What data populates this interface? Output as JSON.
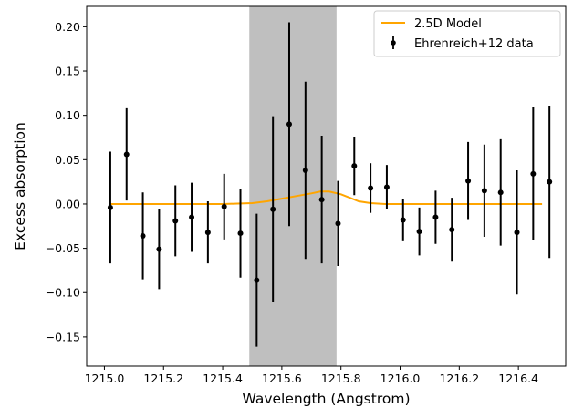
{
  "chart_data": {
    "type": "scatter",
    "title": "",
    "xlabel": "Wavelength (Angstrom)",
    "ylabel": "Excess absorption",
    "xlim": [
      1214.94,
      1216.56
    ],
    "ylim": [
      -0.183,
      0.223
    ],
    "x_ticks": [
      1215.0,
      1215.2,
      1215.4,
      1215.6,
      1215.8,
      1216.0,
      1216.2,
      1216.4
    ],
    "x_tick_labels": [
      "1215.0",
      "1215.2",
      "1215.4",
      "1215.6",
      "1215.8",
      "1216.0",
      "1216.2",
      "1216.4"
    ],
    "y_ticks": [
      -0.15,
      -0.1,
      -0.05,
      0.0,
      0.05,
      0.1,
      0.15,
      0.2
    ],
    "y_tick_labels": [
      "−0.15",
      "−0.10",
      "−0.05",
      "0.00",
      "0.05",
      "0.10",
      "0.15",
      "0.20"
    ],
    "grid": false,
    "legend_position": "top-right",
    "shaded_region": {
      "x_range": [
        1215.49,
        1215.785
      ],
      "color": "#bfbfbf"
    },
    "series": [
      {
        "name": "2.5D Model",
        "kind": "line",
        "color": "#ffa500",
        "x": [
          1215.02,
          1215.4,
          1215.45,
          1215.5,
          1215.55,
          1215.6,
          1215.65,
          1215.7,
          1215.73,
          1215.76,
          1215.8,
          1215.83,
          1215.86,
          1215.9,
          1215.95,
          1216.0,
          1216.48
        ],
        "y": [
          0.0,
          0.0,
          0.0005,
          0.001,
          0.003,
          0.006,
          0.009,
          0.012,
          0.014,
          0.014,
          0.011,
          0.007,
          0.003,
          0.001,
          0.0,
          0.0,
          0.0
        ]
      },
      {
        "name": "Ehrenreich+12 data",
        "kind": "errorbar",
        "color": "#000000",
        "x": [
          1215.02,
          1215.075,
          1215.13,
          1215.185,
          1215.24,
          1215.295,
          1215.35,
          1215.405,
          1215.46,
          1215.515,
          1215.57,
          1215.625,
          1215.68,
          1215.735,
          1215.79,
          1215.845,
          1215.9,
          1215.955,
          1216.01,
          1216.065,
          1216.12,
          1216.175,
          1216.23,
          1216.285,
          1216.34,
          1216.395,
          1216.45,
          1216.505
        ],
        "y": [
          -0.004,
          0.056,
          -0.036,
          -0.051,
          -0.019,
          -0.015,
          -0.032,
          -0.003,
          -0.033,
          -0.086,
          -0.006,
          0.09,
          0.038,
          0.005,
          -0.022,
          0.043,
          0.018,
          0.019,
          -0.018,
          -0.031,
          -0.015,
          -0.029,
          0.026,
          0.015,
          0.013,
          -0.032,
          0.034,
          0.025
        ],
        "err_low": [
          0.063,
          0.052,
          0.049,
          0.045,
          0.04,
          0.039,
          0.035,
          0.037,
          0.05,
          0.075,
          0.105,
          0.115,
          0.1,
          0.072,
          0.048,
          0.033,
          0.028,
          0.025,
          0.024,
          0.027,
          0.03,
          0.036,
          0.044,
          0.052,
          0.06,
          0.07,
          0.075,
          0.086
        ],
        "err_high": [
          0.063,
          0.052,
          0.049,
          0.045,
          0.04,
          0.039,
          0.035,
          0.037,
          0.05,
          0.075,
          0.105,
          0.115,
          0.1,
          0.072,
          0.048,
          0.033,
          0.028,
          0.025,
          0.024,
          0.027,
          0.03,
          0.036,
          0.044,
          0.052,
          0.06,
          0.07,
          0.075,
          0.086
        ]
      }
    ]
  }
}
